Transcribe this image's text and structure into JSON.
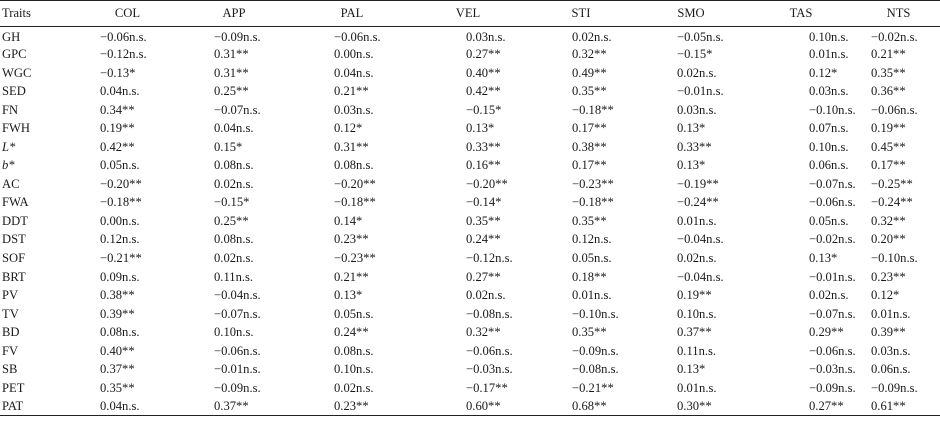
{
  "table": {
    "headers": [
      "Traits",
      "COL",
      "APP",
      "PAL",
      "VEL",
      "STI",
      "SMO",
      "TAS",
      "NTS"
    ],
    "rows": [
      {
        "trait": "GH",
        "italic": false,
        "values": [
          "−0.06n.s.",
          "−0.09n.s.",
          "−0.06n.s.",
          "0.03n.s.",
          "0.02n.s.",
          "−0.05n.s.",
          "0.10n.s.",
          "−0.02n.s."
        ]
      },
      {
        "trait": "GPC",
        "italic": false,
        "values": [
          "−0.12n.s.",
          "0.31**",
          "0.00n.s.",
          "0.27**",
          "0.32**",
          "−0.15*",
          "0.01n.s.",
          "0.21**"
        ]
      },
      {
        "trait": "WGC",
        "italic": false,
        "values": [
          "−0.13*",
          "0.31**",
          "0.04n.s.",
          "0.40**",
          "0.49**",
          "0.02n.s.",
          "0.12*",
          "0.35**"
        ]
      },
      {
        "trait": "SED",
        "italic": false,
        "values": [
          "0.04n.s.",
          "0.25**",
          "0.21**",
          "0.42**",
          "0.35**",
          "−0.01n.s.",
          "0.03n.s.",
          "0.36**"
        ]
      },
      {
        "trait": "FN",
        "italic": false,
        "values": [
          "0.34**",
          "−0.07n.s.",
          "0.03n.s.",
          "−0.15*",
          "−0.18**",
          "0.03n.s.",
          "−0.10n.s.",
          "−0.06n.s."
        ]
      },
      {
        "trait": "FWH",
        "italic": false,
        "values": [
          "0.19**",
          "0.04n.s.",
          "0.12*",
          "0.13*",
          "0.17**",
          "0.13*",
          "0.07n.s.",
          "0.19**"
        ]
      },
      {
        "trait": "L*",
        "italic": true,
        "values": [
          "0.42**",
          "0.15*",
          "0.31**",
          "0.33**",
          "0.38**",
          "0.33**",
          "0.10n.s.",
          "0.45**"
        ]
      },
      {
        "trait": "b*",
        "italic": true,
        "values": [
          "0.05n.s.",
          "0.08n.s.",
          "0.08n.s.",
          "0.16**",
          "0.17**",
          "0.13*",
          "0.06n.s.",
          "0.17**"
        ]
      },
      {
        "trait": "AC",
        "italic": false,
        "values": [
          "−0.20**",
          "0.02n.s.",
          "−0.20**",
          "−0.20**",
          "−0.23**",
          "−0.19**",
          "−0.07n.s.",
          "−0.25**"
        ]
      },
      {
        "trait": "FWA",
        "italic": false,
        "values": [
          "−0.18**",
          "−0.15*",
          "−0.18**",
          "−0.14*",
          "−0.18**",
          "−0.24**",
          "−0.06n.s.",
          "−0.24**"
        ]
      },
      {
        "trait": "DDT",
        "italic": false,
        "values": [
          "0.00n.s.",
          "0.25**",
          "0.14*",
          "0.35**",
          "0.35**",
          "0.01n.s.",
          "0.05n.s.",
          "0.32**"
        ]
      },
      {
        "trait": "DST",
        "italic": false,
        "values": [
          "0.12n.s.",
          "0.08n.s.",
          "0.23**",
          "0.24**",
          "0.12n.s.",
          "−0.04n.s.",
          "−0.02n.s.",
          "0.20**"
        ]
      },
      {
        "trait": "SOF",
        "italic": false,
        "values": [
          "−0.21**",
          "0.02n.s.",
          "−0.23**",
          "−0.12n.s.",
          "0.05n.s.",
          "0.02n.s.",
          "0.13*",
          "−0.10n.s."
        ]
      },
      {
        "trait": "BRT",
        "italic": false,
        "values": [
          "0.09n.s.",
          "0.11n.s.",
          "0.21**",
          "0.27**",
          "0.18**",
          "−0.04n.s.",
          "−0.01n.s.",
          "0.23**"
        ]
      },
      {
        "trait": "PV",
        "italic": false,
        "values": [
          "0.38**",
          "−0.04n.s.",
          "0.13*",
          "0.02n.s.",
          "0.01n.s.",
          "0.19**",
          "0.02n.s.",
          "0.12*"
        ]
      },
      {
        "trait": "TV",
        "italic": false,
        "values": [
          "0.39**",
          "−0.07n.s.",
          "0.05n.s.",
          "−0.08n.s.",
          "−0.10n.s.",
          "0.10n.s.",
          "−0.07n.s.",
          "0.01n.s."
        ]
      },
      {
        "trait": "BD",
        "italic": false,
        "values": [
          "0.08n.s.",
          "0.10n.s.",
          "0.24**",
          "0.32**",
          "0.35**",
          "0.37**",
          "0.29**",
          "0.39**"
        ]
      },
      {
        "trait": "FV",
        "italic": false,
        "values": [
          "0.40**",
          "−0.06n.s.",
          "0.08n.s.",
          "−0.06n.s.",
          "−0.09n.s.",
          "0.11n.s.",
          "−0.06n.s.",
          "0.03n.s."
        ]
      },
      {
        "trait": "SB",
        "italic": false,
        "values": [
          "0.37**",
          "−0.01n.s.",
          "0.10n.s.",
          "−0.03n.s.",
          "−0.08n.s.",
          "0.13*",
          "−0.03n.s.",
          "0.06n.s."
        ]
      },
      {
        "trait": "PET",
        "italic": false,
        "values": [
          "0.35**",
          "−0.09n.s.",
          "0.02n.s.",
          "−0.17**",
          "−0.21**",
          "0.01n.s.",
          "−0.09n.s.",
          "−0.09n.s."
        ]
      },
      {
        "trait": "PAT",
        "italic": false,
        "values": [
          "0.04n.s.",
          "0.37**",
          "0.23**",
          "0.60**",
          "0.68**",
          "0.30**",
          "0.27**",
          "0.61**"
        ]
      }
    ]
  }
}
